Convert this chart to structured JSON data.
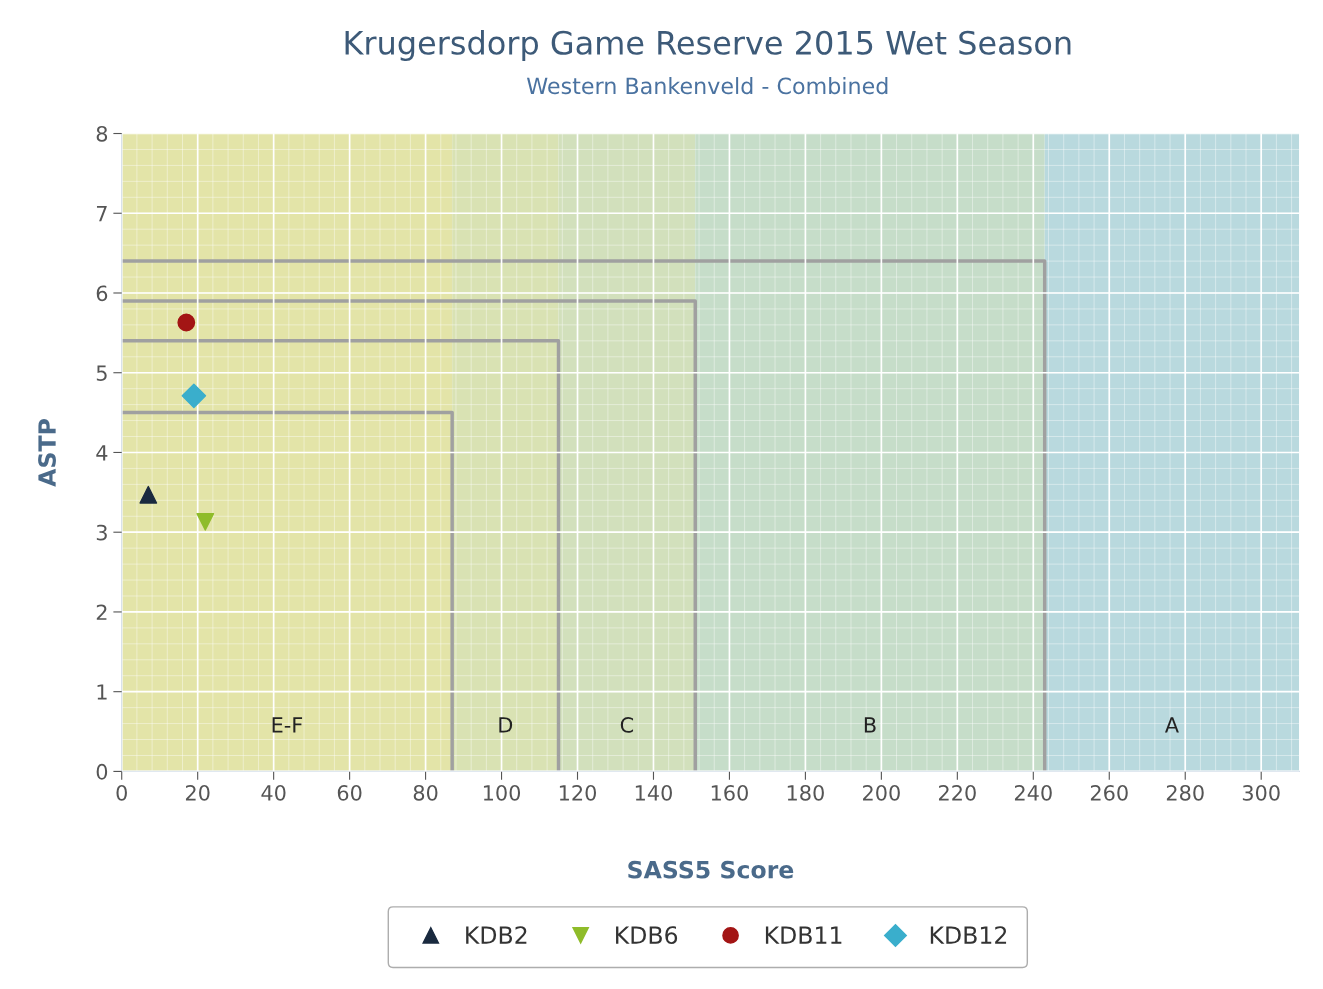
{
  "chart_data": {
    "type": "scatter",
    "title": "Krugersdorp Game Reserve 2015 Wet Season",
    "subtitle": "Western Bankenveld - Combined",
    "xlabel": "SASS5 Score",
    "ylabel": "ASTP",
    "xlim": [
      0,
      310
    ],
    "xticks": [
      0,
      20,
      40,
      60,
      80,
      100,
      120,
      140,
      160,
      180,
      200,
      220,
      240,
      260,
      280,
      300
    ],
    "ylim": [
      0,
      8
    ],
    "yticks": [
      0,
      1,
      2,
      3,
      4,
      5,
      6,
      7,
      8
    ],
    "grid": true,
    "legend": "bottom",
    "series": [
      {
        "type": "line",
        "color": "#a0a0a0",
        "marker": "none",
        "x": [
          0,
          87,
          87
        ],
        "values": [
          4.5,
          4.5,
          0
        ]
      },
      {
        "type": "line",
        "color": "#a0a0a0",
        "marker": "none",
        "x": [
          0,
          115,
          115
        ],
        "values": [
          5.4,
          5.4,
          0
        ]
      },
      {
        "type": "line",
        "color": "#a0a0a0",
        "marker": "none",
        "x": [
          0,
          151,
          151
        ],
        "values": [
          5.9,
          5.9,
          0
        ]
      },
      {
        "type": "line",
        "color": "#a0a0a0",
        "marker": "none",
        "x": [
          0,
          243,
          243
        ],
        "values": [
          6.4,
          6.4,
          0
        ]
      },
      {
        "name": "KDB2",
        "color": "#1a2a3f",
        "marker": "triangle",
        "x": [
          7
        ],
        "values": [
          3.47
        ]
      },
      {
        "name": "KDB6",
        "color": "#8fbc2a",
        "marker": "triangle-down",
        "x": [
          22
        ],
        "values": [
          3.13
        ]
      },
      {
        "name": "KDB11",
        "color": "#a31515",
        "marker": "circle",
        "x": [
          17
        ],
        "values": [
          5.63
        ]
      },
      {
        "name": "KDB12",
        "color": "#3aaecc",
        "marker": "diamond",
        "x": [
          19
        ],
        "values": [
          4.71
        ]
      }
    ],
    "bands": [
      {
        "axis": "x",
        "from": 0,
        "to": 87,
        "label": "E-F",
        "color": "#e3e4a8"
      },
      {
        "axis": "x",
        "from": 87,
        "to": 115,
        "label": "D",
        "color": "#d9e2b3"
      },
      {
        "axis": "x",
        "from": 115,
        "to": 151,
        "label": "C",
        "color": "#d2e0bc"
      },
      {
        "axis": "x",
        "from": 151,
        "to": 243,
        "label": "B",
        "color": "#c6ddc9"
      },
      {
        "axis": "x",
        "from": 243,
        "to": 310,
        "label": "A",
        "color": "#b9d9de"
      }
    ]
  }
}
